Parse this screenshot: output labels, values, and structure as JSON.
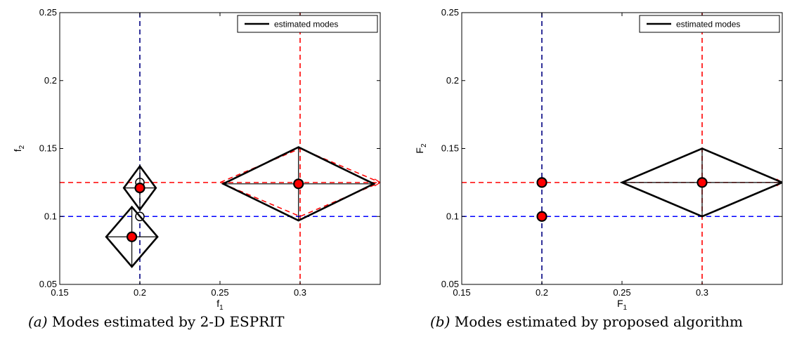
{
  "chart_data": [
    {
      "type": "scatter",
      "caption_label": "(a)",
      "caption_text": "Modes estimated by 2-D ESPRIT",
      "xlabel": "f",
      "xlabel_sub": "1",
      "ylabel": "f",
      "ylabel_sub": "2",
      "xlim": [
        0.15,
        0.35
      ],
      "ylim": [
        0.05,
        0.25
      ],
      "xticks": [
        0.15,
        0.2,
        0.25,
        0.3
      ],
      "xtick_labels": [
        "0.15",
        "0.2",
        "0.25",
        "0.3"
      ],
      "yticks": [
        0.05,
        0.1,
        0.15,
        0.2,
        0.25
      ],
      "ytick_labels": [
        "0.05",
        "0.1",
        "0.15",
        "0.2",
        "0.25"
      ],
      "legend": {
        "label": "estimated modes",
        "position": "top-right"
      },
      "colors": {
        "true_navy": "#000080",
        "true_red": "#ff0000",
        "true_blue": "#0000ff",
        "estimate": "#000000",
        "fill": "#ff0000"
      },
      "ref_lines": [
        {
          "orient": "v",
          "value": 0.2,
          "color": "#000080"
        },
        {
          "orient": "v",
          "value": 0.3,
          "color": "#ff0000"
        },
        {
          "orient": "h",
          "value": 0.125,
          "color": "#ff0000"
        },
        {
          "orient": "h",
          "value": 0.1,
          "color": "#0000ff"
        }
      ],
      "true_diamonds": [
        {
          "x": 0.3,
          "y": 0.125,
          "dx": 0.05,
          "dy": 0.025,
          "color": "#ff0000"
        }
      ],
      "true_points": [
        {
          "x": 0.2,
          "y": 0.125
        },
        {
          "x": 0.2,
          "y": 0.1
        }
      ],
      "modes": [
        {
          "x": 0.299,
          "y": 0.124,
          "dx": 0.047,
          "dy": 0.027
        },
        {
          "x": 0.2,
          "y": 0.121,
          "dx": 0.01,
          "dy": 0.016
        },
        {
          "x": 0.195,
          "y": 0.085,
          "dx": 0.016,
          "dy": 0.022
        }
      ]
    },
    {
      "type": "scatter",
      "caption_label": "(b)",
      "caption_text": "Modes estimated by proposed algorithm",
      "xlabel": "F",
      "xlabel_sub": "1",
      "ylabel": "F",
      "ylabel_sub": "2",
      "xlim": [
        0.15,
        0.35
      ],
      "ylim": [
        0.05,
        0.25
      ],
      "xticks": [
        0.15,
        0.2,
        0.25,
        0.3
      ],
      "xtick_labels": [
        "0.15",
        "0.2",
        "0.25",
        "0.3"
      ],
      "yticks": [
        0.05,
        0.1,
        0.15,
        0.2,
        0.25
      ],
      "ytick_labels": [
        "0.05",
        "0.1",
        "0.15",
        "0.2",
        "0.25"
      ],
      "legend": {
        "label": "estimated modes",
        "position": "top-right"
      },
      "colors": {
        "true_navy": "#000080",
        "true_red": "#ff0000",
        "true_blue": "#0000ff",
        "estimate": "#000000",
        "fill": "#ff0000"
      },
      "ref_lines": [
        {
          "orient": "v",
          "value": 0.2,
          "color": "#000080"
        },
        {
          "orient": "v",
          "value": 0.3,
          "color": "#ff0000"
        },
        {
          "orient": "h",
          "value": 0.125,
          "color": "#ff0000"
        },
        {
          "orient": "h",
          "value": 0.1,
          "color": "#0000ff"
        }
      ],
      "true_diamonds": [
        {
          "x": 0.3,
          "y": 0.125,
          "dx": 0.05,
          "dy": 0.025,
          "color": "#ff0000"
        }
      ],
      "true_points": [],
      "modes": [
        {
          "x": 0.3,
          "y": 0.125,
          "dx": 0.05,
          "dy": 0.025
        },
        {
          "x": 0.2,
          "y": 0.125,
          "dx": 0,
          "dy": 0
        },
        {
          "x": 0.2,
          "y": 0.1,
          "dx": 0,
          "dy": 0
        }
      ]
    }
  ]
}
